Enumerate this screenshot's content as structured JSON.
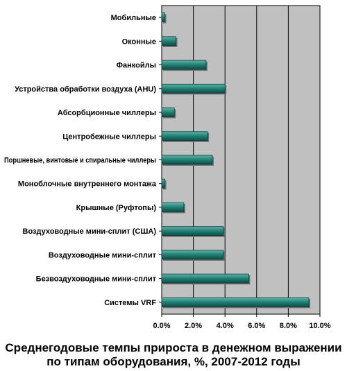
{
  "chart_data": {
    "type": "bar",
    "orientation": "horizontal",
    "title": "",
    "caption_line1": "Среднегодовые темпы прироста в денежном выражении",
    "caption_line2": "по типам оборудования, %, 2007-2012 годы",
    "categories": [
      "Мобильные",
      "Оконные",
      "Фанкойлы",
      "Устройства обработки воздуха (AHU)",
      "Абсорбционные чиллеры",
      "Центробежные чиллеры",
      "Поршневые, винтовые и спиральные чиллеры",
      "Моноблочные внутреннего монтажа",
      "Крышные (Руфтопы)",
      "Воздуховодные мини-сплит (США)",
      "Воздуховодные мини-сплит",
      "Безвоздуховодные мини-сплит",
      "Системы VRF"
    ],
    "values": [
      0.2,
      0.9,
      2.8,
      4.0,
      0.8,
      2.9,
      3.2,
      0.2,
      1.4,
      3.9,
      3.9,
      5.5,
      9.3
    ],
    "xlim": [
      0,
      10
    ],
    "xticks": [
      "0.0%",
      "2.0%",
      "4.0%",
      "6.0%",
      "8.0%",
      "10.0%"
    ],
    "grid": true,
    "colors": {
      "bar": "#1f7f74",
      "bar_light": "#5fb3a8",
      "bar_dark": "#0f4a44",
      "plot_bg": "#c0c0c0"
    }
  }
}
